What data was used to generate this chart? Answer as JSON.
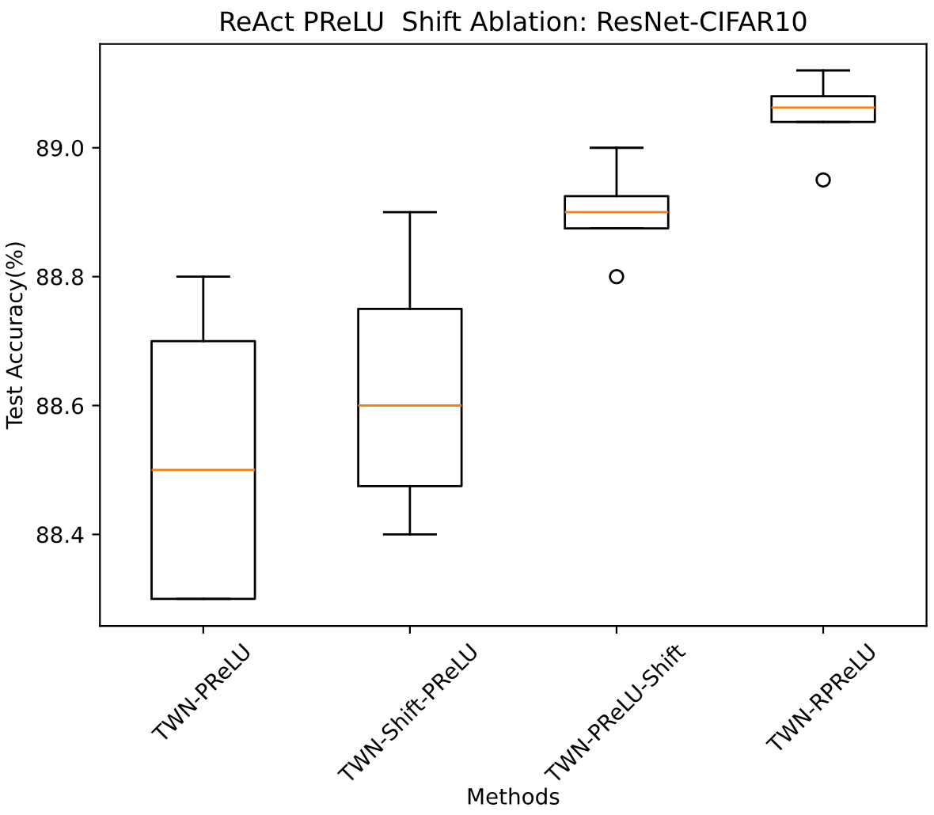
{
  "chart_data": {
    "type": "box",
    "title": "ReAct PReLU  Shift Ablation: ResNet-CIFAR10",
    "xlabel": "Methods",
    "ylabel": "Test Accuracy(%)",
    "categories": [
      "TWN-PReLU",
      "TWN-Shift-PReLU",
      "TWN-PReLU-Shift",
      "TWN-RPReLU"
    ],
    "boxes": [
      {
        "low": 88.3,
        "q1": 88.3,
        "median": 88.5,
        "q3": 88.7,
        "high": 88.8
      },
      {
        "low": 88.4,
        "q1": 88.475,
        "median": 88.6,
        "q3": 88.75,
        "high": 88.9
      },
      {
        "low": 88.875,
        "q1": 88.875,
        "median": 88.9,
        "q3": 88.925,
        "high": 89.0,
        "outliers": [
          88.8
        ]
      },
      {
        "low": 89.04,
        "q1": 89.04,
        "median": 89.0625,
        "q3": 89.08,
        "high": 89.12,
        "outliers": [
          88.95
        ]
      }
    ],
    "color": "#000000",
    "ylim": [
      88.258,
      89.161
    ],
    "yticks": [
      {
        "value": 88.4,
        "label": "88.4"
      },
      {
        "value": 88.6,
        "label": "88.6"
      },
      {
        "value": 88.8,
        "label": "88.8"
      },
      {
        "value": 89.0,
        "label": "89.0"
      }
    ],
    "grid": false,
    "legend": false
  }
}
